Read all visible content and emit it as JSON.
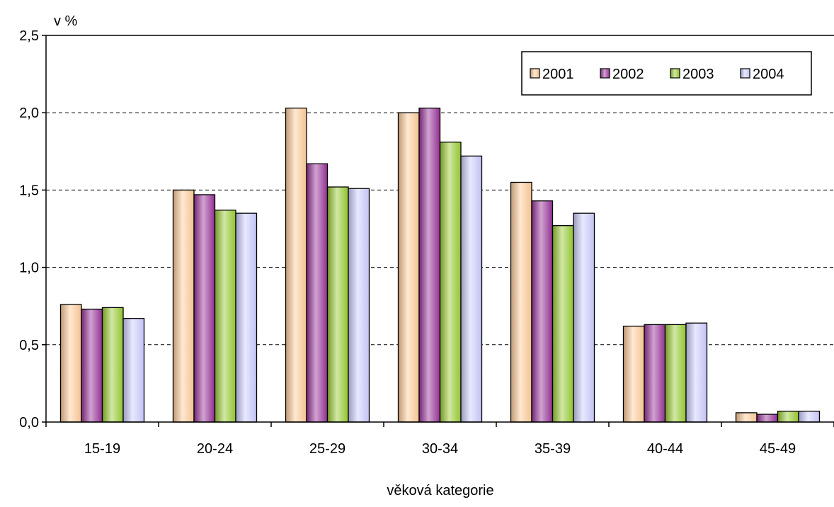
{
  "chart_data": {
    "type": "bar",
    "title": "",
    "ylabel": "v %",
    "xlabel": "věková kategorie",
    "categories": [
      "15-19",
      "20-24",
      "25-29",
      "30-34",
      "35-39",
      "40-44",
      "45-49"
    ],
    "ylim": [
      0,
      2.5
    ],
    "yticks": [
      "0,0",
      "0,5",
      "1,0",
      "1,5",
      "2,0",
      "2,5"
    ],
    "grid": "horizontal dashed",
    "legend_position": "top-right",
    "series": [
      {
        "name": "2001",
        "color": "#ffcc99",
        "values": [
          0.76,
          1.5,
          2.03,
          2.0,
          1.55,
          0.62,
          0.06
        ]
      },
      {
        "name": "2002",
        "color": "#993399",
        "values": [
          0.73,
          1.47,
          1.67,
          2.03,
          1.43,
          0.63,
          0.05
        ]
      },
      {
        "name": "2003",
        "color": "#99cc33",
        "values": [
          0.74,
          1.37,
          1.52,
          1.81,
          1.27,
          0.63,
          0.07
        ]
      },
      {
        "name": "2004",
        "color": "#ccccff",
        "values": [
          0.67,
          1.35,
          1.51,
          1.72,
          1.35,
          0.64,
          0.07
        ]
      }
    ]
  }
}
